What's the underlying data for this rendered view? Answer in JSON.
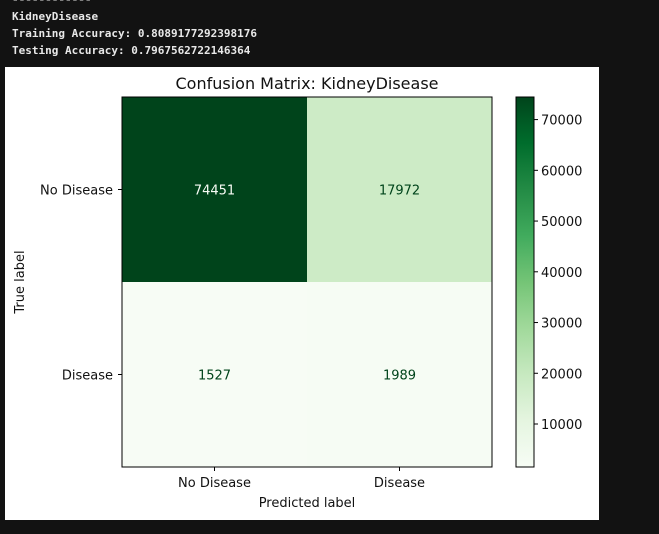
{
  "console": {
    "separator": "------------",
    "dataset": "KidneyDisease",
    "training_accuracy": "Training Accuracy: 0.8089177292398176",
    "testing_accuracy": "Testing Accuracy: 0.7967562722146364"
  },
  "chart_data": {
    "type": "heatmap",
    "title": "Confusion Matrix: KidneyDisease",
    "xlabel": "Predicted label",
    "ylabel": "True label",
    "x_categories": [
      "No Disease",
      "Disease"
    ],
    "y_categories": [
      "No Disease",
      "Disease"
    ],
    "matrix": [
      [
        74451,
        17972
      ],
      [
        1527,
        1989
      ]
    ],
    "colormap": "Greens",
    "colorbar": {
      "ticks": [
        10000,
        20000,
        30000,
        40000,
        50000,
        60000,
        70000
      ],
      "range": [
        1527,
        74451
      ]
    },
    "colors": {
      "low": "#f7fcf5",
      "high": "#00441b",
      "text_dark": "#00441b",
      "text_light": "#f7fcf5"
    }
  }
}
